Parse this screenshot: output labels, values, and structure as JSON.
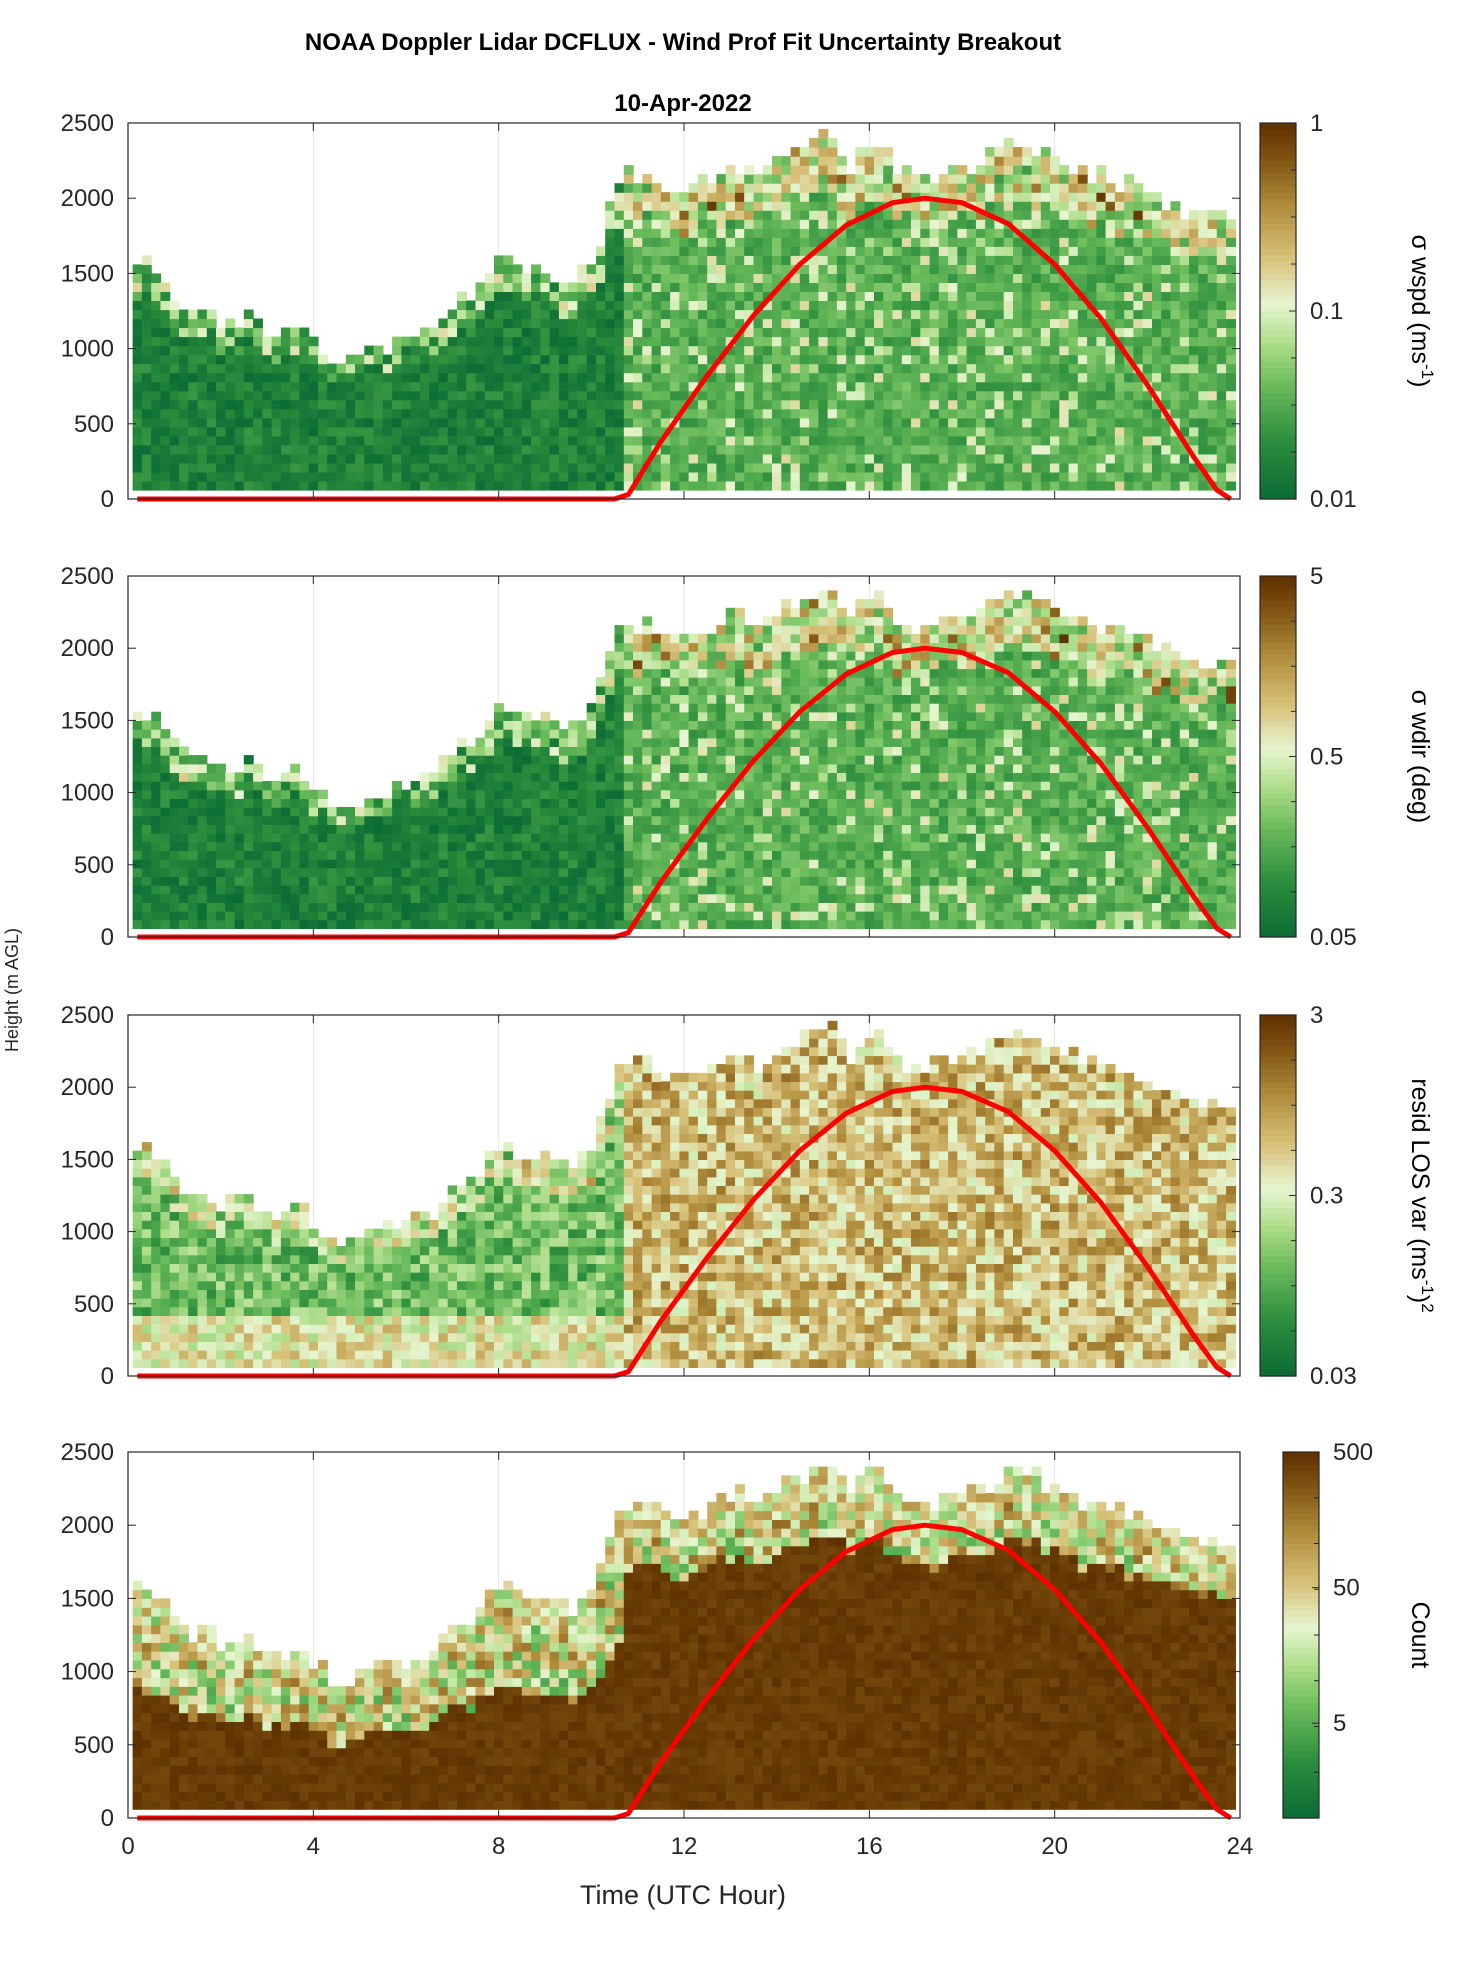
{
  "figure": {
    "title": "NOAA Doppler Lidar DCFLUX - Wind Prof Fit Uncertainty Breakout",
    "date_label": "10-Apr-2022",
    "shared_ylabel": "Height (m AGL)",
    "xlabel": "Time (UTC Hour)",
    "colors": {
      "sun_curve": "#ff0000",
      "green_dark": "#0b6b35",
      "green_light": "#e6f5d0",
      "brown_dark": "#5e3100",
      "tan": "#d8c27a"
    }
  },
  "chart_data": [
    {
      "type": "heatmap",
      "panel": 1,
      "colorbar_label": "σ wspd (ms-1)",
      "colorbar_label_main": "σ wspd (ms",
      "colorbar_label_sup": "-1",
      "colorbar_label_end": ")",
      "colorbar_scale": "log",
      "colorbar_range": [
        0.01,
        1
      ],
      "colorbar_ticks": [
        "1",
        "0.1",
        "0.01"
      ],
      "colorbar_tick_values": [
        1,
        0.1,
        0.01
      ],
      "xlim": [
        0,
        24
      ],
      "ylim": [
        0,
        2500
      ],
      "xticks": [
        0,
        4,
        8,
        12,
        16,
        20,
        24
      ],
      "yticks": [
        0,
        500,
        1000,
        1500,
        2000,
        2500
      ],
      "grid": "vertical",
      "regime": "green",
      "dominant_value_below_top": 0.02,
      "daytime_value": 0.04
    },
    {
      "type": "heatmap",
      "panel": 2,
      "colorbar_label": "σ wdir (deg)",
      "colorbar_label_main": "σ wdir (deg)",
      "colorbar_scale": "log",
      "colorbar_range": [
        0.05,
        5
      ],
      "colorbar_ticks": [
        "5",
        "0.5",
        "0.05"
      ],
      "colorbar_tick_values": [
        5,
        0.5,
        0.05
      ],
      "xlim": [
        0,
        24
      ],
      "ylim": [
        0,
        2500
      ],
      "xticks": [
        0,
        4,
        8,
        12,
        16,
        20,
        24
      ],
      "yticks": [
        0,
        500,
        1000,
        1500,
        2000,
        2500
      ],
      "grid": "vertical",
      "regime": "green",
      "dominant_value_below_top": 0.08,
      "daytime_value": 0.15
    },
    {
      "type": "heatmap",
      "panel": 3,
      "colorbar_label": "resid LOS var (ms-1)2",
      "colorbar_label_main": "resid LOS var (ms",
      "colorbar_label_sup": "-1",
      "colorbar_label_end": ")",
      "colorbar_label_sup2": "2",
      "colorbar_scale": "log",
      "colorbar_range": [
        0.03,
        3
      ],
      "colorbar_ticks": [
        "3",
        "0.3",
        "0.03"
      ],
      "colorbar_tick_values": [
        3,
        0.3,
        0.03
      ],
      "xlim": [
        0,
        24
      ],
      "ylim": [
        0,
        2500
      ],
      "xticks": [
        0,
        4,
        8,
        12,
        16,
        20,
        24
      ],
      "yticks": [
        0,
        500,
        1000,
        1500,
        2000,
        2500
      ],
      "grid": "vertical",
      "regime": "mixed",
      "night_value": 0.15,
      "daytime_value": 1.2
    },
    {
      "type": "heatmap",
      "panel": 4,
      "colorbar_label": "Count",
      "colorbar_label_main": "Count",
      "colorbar_scale": "log",
      "colorbar_range": [
        1,
        500
      ],
      "colorbar_ticks": [
        "500",
        "50",
        "5"
      ],
      "colorbar_tick_values": [
        500,
        50,
        5
      ],
      "xlim": [
        0,
        24
      ],
      "ylim": [
        0,
        2500
      ],
      "xticks": [
        0,
        4,
        8,
        12,
        16,
        20,
        24
      ],
      "yticks": [
        0,
        500,
        1000,
        1500,
        2000,
        2500
      ],
      "xtick_labels_shown": true,
      "grid": "vertical",
      "regime": "count",
      "dominant_value_below_top": 500
    }
  ],
  "data_top_boundary": {
    "hours": [
      0.2,
      0.6,
      1.0,
      1.5,
      2.0,
      2.5,
      3.0,
      3.5,
      4.0,
      4.5,
      5.0,
      5.5,
      6.0,
      6.5,
      7.0,
      7.5,
      8.0,
      8.5,
      9.0,
      9.5,
      10.0,
      10.5,
      11.0,
      11.5,
      12.0,
      12.5,
      13.0,
      13.5,
      14.0,
      14.5,
      15.0,
      15.5,
      16.0,
      16.5,
      17.0,
      17.5,
      18.0,
      18.5,
      19.0,
      19.5,
      20.0,
      20.5,
      21.0,
      21.5,
      22.0,
      22.5,
      23.0,
      23.5,
      23.8
    ],
    "height_m": [
      1550,
      1500,
      1250,
      1250,
      1150,
      1200,
      1050,
      1150,
      1000,
      850,
      950,
      1000,
      1050,
      1100,
      1300,
      1400,
      1600,
      1450,
      1500,
      1400,
      1600,
      2100,
      2150,
      2050,
      2050,
      2100,
      2200,
      2100,
      2250,
      2300,
      2450,
      2200,
      2400,
      2150,
      2100,
      2150,
      2200,
      2250,
      2350,
      2300,
      2200,
      2150,
      2100,
      2050,
      2000,
      1900,
      1850,
      1850,
      1850
    ]
  },
  "sun_curve": {
    "hours": [
      0.2,
      10.5,
      10.8,
      11.5,
      12.5,
      13.5,
      14.5,
      15.5,
      16.5,
      17.2,
      18.0,
      19.0,
      20.0,
      21.0,
      22.0,
      23.0,
      23.5,
      23.8
    ],
    "height_m": [
      0,
      0,
      30,
      380,
      820,
      1220,
      1560,
      1820,
      1970,
      2000,
      1970,
      1830,
      1560,
      1200,
      760,
      280,
      60,
      0
    ]
  }
}
